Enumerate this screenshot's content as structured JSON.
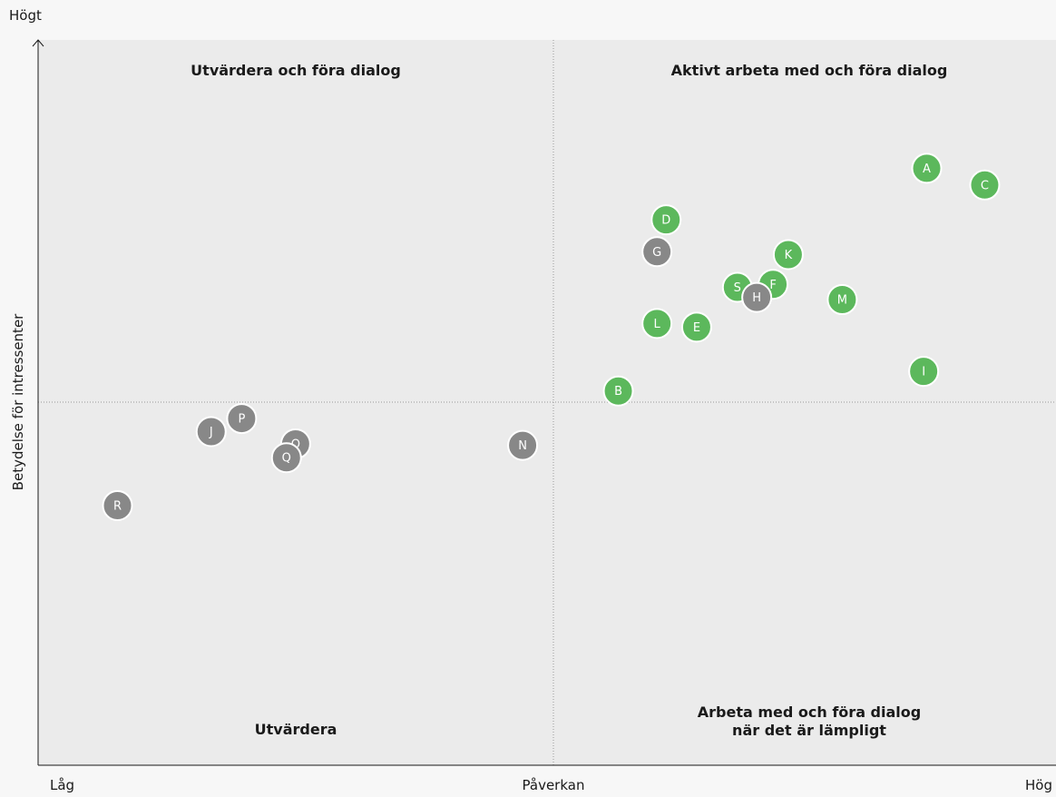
{
  "chart_data": {
    "type": "scatter",
    "title": "",
    "xlabel": "Påverkan",
    "ylabel": "Betydelse för intressenter",
    "x_low_label": "Låg",
    "x_high_label": "Hög",
    "y_high_label": "Högt",
    "xlim": [
      0,
      100
    ],
    "ylim": [
      0,
      100
    ],
    "grid": false,
    "quadrants": {
      "top_left": [
        "Utvärdera och föra dialog"
      ],
      "top_right": [
        "Aktivt arbeta med och föra dialog"
      ],
      "bottom_left": [
        "Utvärdera"
      ],
      "bottom_right": [
        "Arbeta med och föra dialog",
        "när det är lämpligt"
      ]
    },
    "colors": {
      "green": "#5cb85c",
      "gray": "#888888"
    },
    "points": [
      {
        "label": "A",
        "x": 87.3,
        "y": 82.3,
        "color": "green"
      },
      {
        "label": "C",
        "x": 93.0,
        "y": 80.0,
        "color": "green"
      },
      {
        "label": "D",
        "x": 61.7,
        "y": 75.2,
        "color": "green"
      },
      {
        "label": "G",
        "x": 60.8,
        "y": 70.8,
        "color": "gray"
      },
      {
        "label": "K",
        "x": 73.7,
        "y": 70.4,
        "color": "green"
      },
      {
        "label": "S",
        "x": 68.7,
        "y": 65.9,
        "color": "green"
      },
      {
        "label": "F",
        "x": 72.2,
        "y": 66.3,
        "color": "green"
      },
      {
        "label": "H",
        "x": 70.6,
        "y": 64.5,
        "color": "gray"
      },
      {
        "label": "M",
        "x": 79.0,
        "y": 64.2,
        "color": "green"
      },
      {
        "label": "L",
        "x": 60.8,
        "y": 60.9,
        "color": "green"
      },
      {
        "label": "E",
        "x": 64.7,
        "y": 60.4,
        "color": "green"
      },
      {
        "label": "I",
        "x": 87.0,
        "y": 54.3,
        "color": "green"
      },
      {
        "label": "B",
        "x": 57.0,
        "y": 51.6,
        "color": "green"
      },
      {
        "label": "P",
        "x": 20.0,
        "y": 47.8,
        "color": "gray"
      },
      {
        "label": "J",
        "x": 17.0,
        "y": 46.0,
        "color": "gray"
      },
      {
        "label": "O",
        "x": 25.3,
        "y": 44.3,
        "color": "gray"
      },
      {
        "label": "Q",
        "x": 24.4,
        "y": 42.4,
        "color": "gray"
      },
      {
        "label": "N",
        "x": 47.6,
        "y": 44.1,
        "color": "gray"
      },
      {
        "label": "R",
        "x": 7.8,
        "y": 35.8,
        "color": "gray"
      }
    ]
  }
}
